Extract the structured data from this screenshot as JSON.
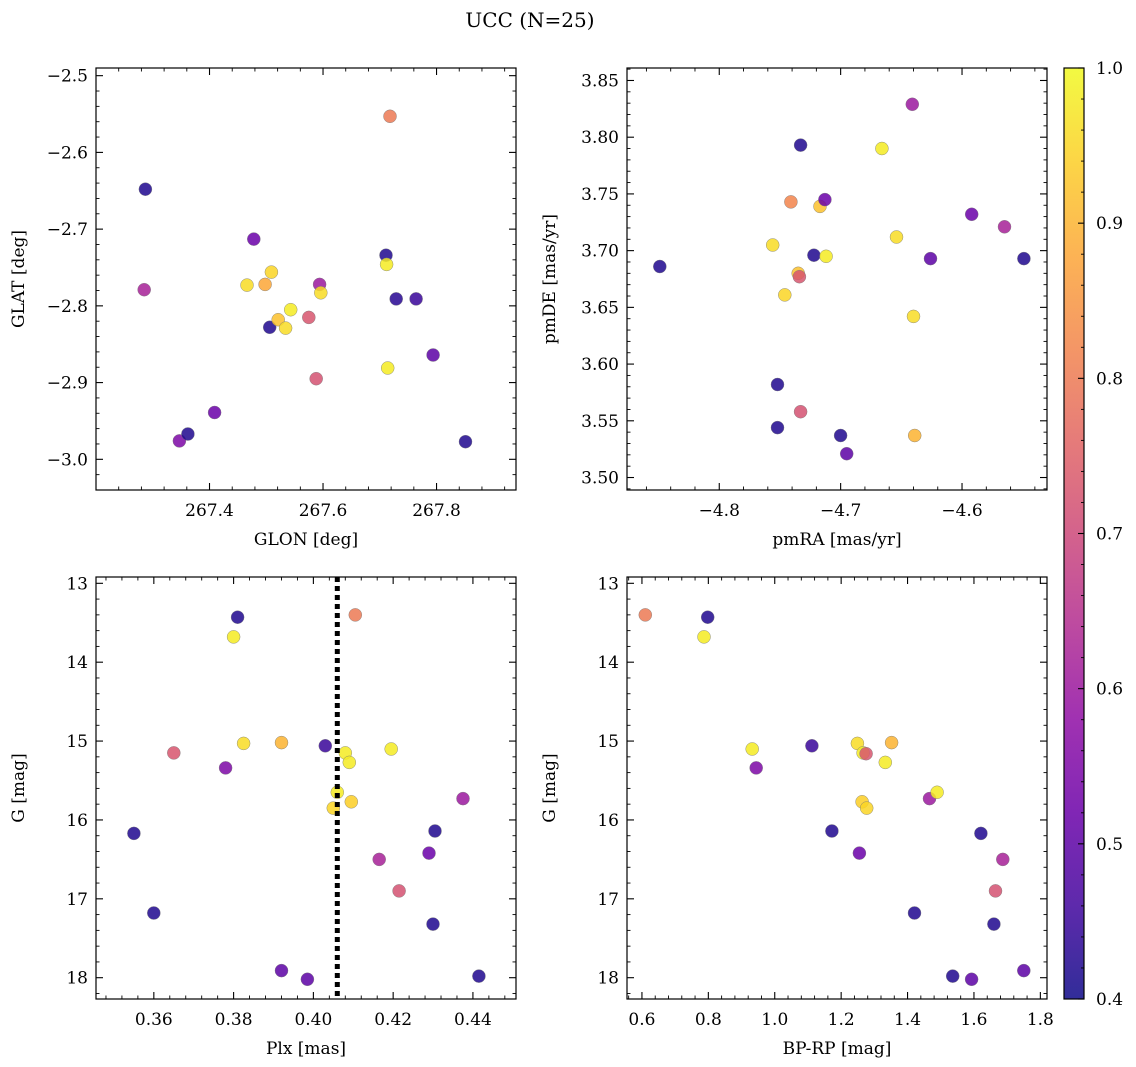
{
  "figure": {
    "title": "UCC (N=25)"
  },
  "colorbar": {
    "range": [
      0.4,
      1.0
    ],
    "colormap": "plasma",
    "ticks": [
      0.4,
      0.5,
      0.6,
      0.7,
      0.8,
      0.9,
      1.0
    ],
    "tick_labels": [
      "0.4",
      "0.5",
      "0.6",
      "0.7",
      "0.8",
      "0.9",
      "1.0"
    ]
  },
  "chart_data": [
    {
      "type": "scatter",
      "xlabel": "GLON [deg]",
      "ylabel": "GLAT [deg]",
      "xlim": [
        267.2,
        267.94
      ],
      "ylim": [
        -3.04,
        -2.49
      ],
      "xticks": [
        267.4,
        267.6,
        267.8
      ],
      "xtick_labels": [
        "267.4",
        "267.6",
        "267.8"
      ],
      "yticks": [
        -2.5,
        -2.6,
        -2.7,
        -2.8,
        -2.9,
        -3.0
      ],
      "ytick_labels": [
        "−2.5",
        "−2.6",
        "−2.7",
        "−2.8",
        "−2.9",
        "−3.0"
      ],
      "inverted_y": false,
      "grid": false,
      "points": [
        {
          "x": 267.287,
          "y": -2.648,
          "c": 0.42
        },
        {
          "x": 267.285,
          "y": -2.779,
          "c": 0.62
        },
        {
          "x": 267.347,
          "y": -2.976,
          "c": 0.55
        },
        {
          "x": 267.362,
          "y": -2.967,
          "c": 0.42
        },
        {
          "x": 267.409,
          "y": -2.939,
          "c": 0.52
        },
        {
          "x": 267.466,
          "y": -2.773,
          "c": 0.96
        },
        {
          "x": 267.478,
          "y": -2.713,
          "c": 0.52
        },
        {
          "x": 267.498,
          "y": -2.772,
          "c": 0.88
        },
        {
          "x": 267.506,
          "y": -2.828,
          "c": 0.42
        },
        {
          "x": 267.509,
          "y": -2.756,
          "c": 0.95
        },
        {
          "x": 267.521,
          "y": -2.818,
          "c": 0.92
        },
        {
          "x": 267.534,
          "y": -2.829,
          "c": 0.96
        },
        {
          "x": 267.543,
          "y": -2.805,
          "c": 0.98
        },
        {
          "x": 267.575,
          "y": -2.815,
          "c": 0.73
        },
        {
          "x": 267.588,
          "y": -2.895,
          "c": 0.72
        },
        {
          "x": 267.594,
          "y": -2.772,
          "c": 0.6
        },
        {
          "x": 267.596,
          "y": -2.783,
          "c": 0.96
        },
        {
          "x": 267.718,
          "y": -2.553,
          "c": 0.8
        },
        {
          "x": 267.711,
          "y": -2.734,
          "c": 0.42
        },
        {
          "x": 267.712,
          "y": -2.746,
          "c": 0.98
        },
        {
          "x": 267.714,
          "y": -2.881,
          "c": 0.98
        },
        {
          "x": 267.729,
          "y": -2.791,
          "c": 0.43
        },
        {
          "x": 267.764,
          "y": -2.791,
          "c": 0.45
        },
        {
          "x": 267.794,
          "y": -2.864,
          "c": 0.5
        },
        {
          "x": 267.851,
          "y": -2.977,
          "c": 0.42
        }
      ]
    },
    {
      "type": "scatter",
      "xlabel": "pmRA [mas/yr]",
      "ylabel": "pmDE [mas/yr]",
      "xlim": [
        -4.876,
        -4.53
      ],
      "ylim": [
        3.489,
        3.861
      ],
      "xticks": [
        -4.8,
        -4.7,
        -4.6
      ],
      "xtick_labels": [
        "−4.8",
        "−4.7",
        "−4.6"
      ],
      "yticks": [
        3.5,
        3.55,
        3.6,
        3.65,
        3.7,
        3.75,
        3.8,
        3.85
      ],
      "ytick_labels": [
        "3.50",
        "3.55",
        "3.60",
        "3.65",
        "3.70",
        "3.75",
        "3.80",
        "3.85"
      ],
      "inverted_y": false,
      "grid": false,
      "points": [
        {
          "x": -4.849,
          "y": 3.686,
          "c": 0.42
        },
        {
          "x": -4.756,
          "y": 3.705,
          "c": 0.96
        },
        {
          "x": -4.752,
          "y": 3.582,
          "c": 0.42
        },
        {
          "x": -4.752,
          "y": 3.544,
          "c": 0.42
        },
        {
          "x": -4.746,
          "y": 3.661,
          "c": 0.95
        },
        {
          "x": -4.741,
          "y": 3.743,
          "c": 0.82
        },
        {
          "x": -4.735,
          "y": 3.68,
          "c": 0.92
        },
        {
          "x": -4.734,
          "y": 3.677,
          "c": 0.73
        },
        {
          "x": -4.733,
          "y": 3.793,
          "c": 0.42
        },
        {
          "x": -4.733,
          "y": 3.558,
          "c": 0.72
        },
        {
          "x": -4.722,
          "y": 3.696,
          "c": 0.42
        },
        {
          "x": -4.717,
          "y": 3.739,
          "c": 0.92
        },
        {
          "x": -4.713,
          "y": 3.745,
          "c": 0.52
        },
        {
          "x": -4.712,
          "y": 3.695,
          "c": 0.98
        },
        {
          "x": -4.7,
          "y": 3.537,
          "c": 0.42
        },
        {
          "x": -4.695,
          "y": 3.521,
          "c": 0.5
        },
        {
          "x": -4.666,
          "y": 3.79,
          "c": 0.98
        },
        {
          "x": -4.654,
          "y": 3.712,
          "c": 0.96
        },
        {
          "x": -4.641,
          "y": 3.829,
          "c": 0.6
        },
        {
          "x": -4.64,
          "y": 3.642,
          "c": 0.96
        },
        {
          "x": -4.639,
          "y": 3.537,
          "c": 0.9
        },
        {
          "x": -4.626,
          "y": 3.693,
          "c": 0.5
        },
        {
          "x": -4.592,
          "y": 3.732,
          "c": 0.52
        },
        {
          "x": -4.565,
          "y": 3.721,
          "c": 0.62
        },
        {
          "x": -4.549,
          "y": 3.693,
          "c": 0.42
        }
      ]
    },
    {
      "type": "scatter",
      "xlabel": "Plx [mas]",
      "ylabel": "G [mag]",
      "xlim": [
        0.3455,
        0.4508
      ],
      "ylim": [
        18.27,
        12.92
      ],
      "xticks": [
        0.36,
        0.38,
        0.4,
        0.42,
        0.44
      ],
      "xtick_labels": [
        "0.36",
        "0.38",
        "0.40",
        "0.42",
        "0.44"
      ],
      "yticks": [
        13,
        14,
        15,
        16,
        17,
        18
      ],
      "ytick_labels": [
        "13",
        "14",
        "15",
        "16",
        "17",
        "18"
      ],
      "inverted_y": true,
      "grid": false,
      "vline": {
        "x": 0.406,
        "style": "dotted"
      },
      "points": [
        {
          "x": 0.355,
          "y": 16.17,
          "c": 0.42
        },
        {
          "x": 0.36,
          "y": 17.18,
          "c": 0.42
        },
        {
          "x": 0.365,
          "y": 15.15,
          "c": 0.73
        },
        {
          "x": 0.378,
          "y": 15.34,
          "c": 0.55
        },
        {
          "x": 0.38,
          "y": 13.68,
          "c": 0.98
        },
        {
          "x": 0.381,
          "y": 13.43,
          "c": 0.42
        },
        {
          "x": 0.3825,
          "y": 15.03,
          "c": 0.96
        },
        {
          "x": 0.392,
          "y": 15.02,
          "c": 0.9
        },
        {
          "x": 0.392,
          "y": 17.91,
          "c": 0.5
        },
        {
          "x": 0.3985,
          "y": 18.02,
          "c": 0.5
        },
        {
          "x": 0.403,
          "y": 15.06,
          "c": 0.45
        },
        {
          "x": 0.405,
          "y": 15.85,
          "c": 0.95
        },
        {
          "x": 0.406,
          "y": 15.65,
          "c": 0.98
        },
        {
          "x": 0.408,
          "y": 15.15,
          "c": 0.98
        },
        {
          "x": 0.409,
          "y": 15.27,
          "c": 0.98
        },
        {
          "x": 0.4095,
          "y": 15.77,
          "c": 0.94
        },
        {
          "x": 0.4105,
          "y": 13.4,
          "c": 0.8
        },
        {
          "x": 0.4165,
          "y": 16.5,
          "c": 0.62
        },
        {
          "x": 0.4195,
          "y": 15.1,
          "c": 0.98
        },
        {
          "x": 0.4215,
          "y": 16.9,
          "c": 0.72
        },
        {
          "x": 0.429,
          "y": 16.42,
          "c": 0.52
        },
        {
          "x": 0.43,
          "y": 17.32,
          "c": 0.42
        },
        {
          "x": 0.4305,
          "y": 16.14,
          "c": 0.42
        },
        {
          "x": 0.4375,
          "y": 15.73,
          "c": 0.6
        },
        {
          "x": 0.4415,
          "y": 17.98,
          "c": 0.42
        }
      ]
    },
    {
      "type": "scatter",
      "xlabel": "BP-RP [mag]",
      "ylabel": "G [mag]",
      "xlim": [
        0.555,
        1.82
      ],
      "ylim": [
        18.27,
        12.92
      ],
      "xticks": [
        0.6,
        0.8,
        1.0,
        1.2,
        1.4,
        1.6,
        1.8
      ],
      "xtick_labels": [
        "0.6",
        "0.8",
        "1.0",
        "1.2",
        "1.4",
        "1.6",
        "1.8"
      ],
      "yticks": [
        13,
        14,
        15,
        16,
        17,
        18
      ],
      "ytick_labels": [
        "13",
        "14",
        "15",
        "16",
        "17",
        "18"
      ],
      "inverted_y": true,
      "grid": false,
      "points": [
        {
          "x": 0.61,
          "y": 13.4,
          "c": 0.8
        },
        {
          "x": 0.787,
          "y": 13.68,
          "c": 0.98
        },
        {
          "x": 0.798,
          "y": 13.43,
          "c": 0.42
        },
        {
          "x": 0.932,
          "y": 15.1,
          "c": 0.98
        },
        {
          "x": 0.944,
          "y": 15.34,
          "c": 0.55
        },
        {
          "x": 1.112,
          "y": 15.06,
          "c": 0.45
        },
        {
          "x": 1.172,
          "y": 16.14,
          "c": 0.42
        },
        {
          "x": 1.249,
          "y": 15.03,
          "c": 0.96
        },
        {
          "x": 1.255,
          "y": 16.42,
          "c": 0.52
        },
        {
          "x": 1.263,
          "y": 15.77,
          "c": 0.94
        },
        {
          "x": 1.266,
          "y": 15.15,
          "c": 0.98
        },
        {
          "x": 1.275,
          "y": 15.16,
          "c": 0.73
        },
        {
          "x": 1.277,
          "y": 15.85,
          "c": 0.95
        },
        {
          "x": 1.333,
          "y": 15.27,
          "c": 0.98
        },
        {
          "x": 1.352,
          "y": 15.02,
          "c": 0.9
        },
        {
          "x": 1.421,
          "y": 17.18,
          "c": 0.42
        },
        {
          "x": 1.466,
          "y": 15.73,
          "c": 0.6
        },
        {
          "x": 1.489,
          "y": 15.65,
          "c": 0.98
        },
        {
          "x": 1.536,
          "y": 17.98,
          "c": 0.42
        },
        {
          "x": 1.593,
          "y": 18.02,
          "c": 0.5
        },
        {
          "x": 1.621,
          "y": 16.17,
          "c": 0.42
        },
        {
          "x": 1.66,
          "y": 17.32,
          "c": 0.42
        },
        {
          "x": 1.665,
          "y": 16.9,
          "c": 0.72
        },
        {
          "x": 1.687,
          "y": 16.5,
          "c": 0.62
        },
        {
          "x": 1.75,
          "y": 17.91,
          "c": 0.5
        }
      ]
    }
  ]
}
